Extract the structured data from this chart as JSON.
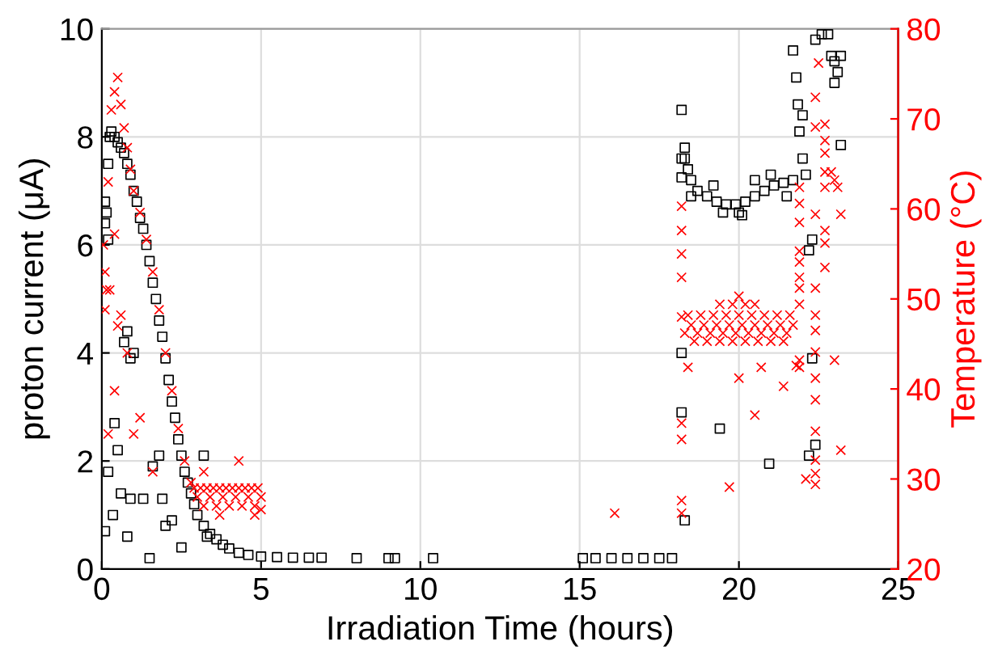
{
  "chart_data": {
    "type": "scatter",
    "xlabel": "Irradiation Time (hours)",
    "ylabel": "proton current (μA)",
    "y2label": "Temperature (°C)",
    "xlim": [
      0,
      25
    ],
    "xticks": [
      0,
      5,
      10,
      15,
      20,
      25
    ],
    "ylim": [
      0,
      10
    ],
    "yticks": [
      0,
      2,
      4,
      6,
      8,
      10
    ],
    "y2lim": [
      20,
      80
    ],
    "y2ticks": [
      20,
      30,
      40,
      50,
      60,
      70,
      80
    ],
    "grid": true,
    "series": [
      {
        "marker": "square",
        "color": "#000000",
        "x": [
          0.1,
          0.15,
          0.2,
          0.25,
          0.3,
          0.4,
          0.5,
          0.6,
          0.7,
          0.8,
          0.9,
          1.0,
          1.1,
          1.2,
          1.3,
          1.4,
          1.5,
          1.6,
          1.7,
          1.8,
          1.9,
          2.0,
          2.1,
          2.2,
          2.3,
          2.4,
          2.5,
          2.6,
          2.7,
          2.8,
          2.9,
          3.0,
          3.2,
          3.4,
          3.6,
          3.8,
          4.0,
          4.3,
          4.6,
          5.0,
          5.5,
          6.0,
          6.5,
          6.9,
          8.0,
          9.0,
          9.2,
          10.4,
          0.1,
          0.2,
          0.35,
          0.5,
          0.4,
          0.6,
          0.7,
          0.8,
          0.9,
          1.0,
          0.9,
          0.8,
          1.3,
          1.5,
          1.6,
          1.8,
          1.9,
          2.0,
          2.2,
          2.5,
          3.2,
          3.3,
          0.1,
          0.2,
          15.1,
          15.5,
          16.0,
          16.5,
          17.0,
          17.5,
          17.9,
          18.2,
          18.2,
          18.2,
          18.2,
          18.2,
          18.3,
          18.3,
          18.4,
          18.5,
          18.7,
          19.0,
          19.3,
          19.6,
          19.9,
          20.2,
          20.5,
          20.8,
          21.1,
          21.4,
          21.7,
          18.3,
          18.5,
          19.2,
          19.5,
          20.0,
          20.5,
          21.0,
          21.5,
          20.1,
          19.4,
          20.95,
          21.7,
          21.8,
          21.85,
          21.9,
          22.0,
          22.1,
          22.0,
          22.4,
          22.6,
          22.8,
          22.9,
          23.0,
          23.1,
          23.2,
          23.0,
          22.3,
          22.2,
          22.2,
          22.4,
          22.3,
          23.2
        ],
        "values": [
          6.4,
          6.6,
          7.5,
          8.0,
          8.1,
          8.0,
          7.9,
          7.8,
          7.7,
          7.5,
          7.3,
          7.0,
          6.8,
          6.5,
          6.3,
          6.0,
          5.7,
          5.3,
          5.0,
          4.6,
          4.3,
          3.9,
          3.5,
          3.1,
          2.8,
          2.4,
          2.1,
          1.8,
          1.6,
          1.4,
          1.2,
          1.0,
          0.8,
          0.65,
          0.55,
          0.45,
          0.38,
          0.3,
          0.26,
          0.23,
          0.22,
          0.21,
          0.21,
          0.21,
          0.2,
          0.2,
          0.2,
          0.2,
          0.7,
          1.8,
          1.0,
          2.2,
          2.7,
          1.4,
          4.2,
          4.4,
          3.9,
          4.0,
          1.3,
          0.6,
          1.3,
          0.2,
          1.9,
          2.1,
          1.3,
          0.8,
          0.9,
          0.4,
          2.1,
          0.6,
          6.8,
          6.1,
          0.2,
          0.2,
          0.2,
          0.2,
          0.2,
          0.2,
          0.2,
          2.9,
          4.0,
          8.5,
          7.6,
          7.25,
          0.9,
          7.6,
          7.4,
          7.2,
          7.0,
          6.9,
          6.8,
          6.75,
          6.75,
          6.8,
          6.9,
          7.0,
          7.1,
          7.15,
          7.2,
          7.8,
          6.9,
          7.1,
          6.6,
          6.6,
          7.2,
          7.3,
          6.9,
          6.55,
          2.6,
          1.95,
          9.6,
          9.1,
          8.6,
          8.1,
          7.6,
          7.3,
          8.4,
          9.8,
          9.9,
          9.9,
          9.5,
          9.4,
          9.2,
          9.5,
          9.0,
          6.1,
          5.9,
          2.1,
          2.3,
          3.9,
          7.85
        ]
      },
      {
        "marker": "cross",
        "color": "#ff0000",
        "axis": "y2",
        "x": [
          0.05,
          0.1,
          0.1,
          0.15,
          0.2,
          0.3,
          0.4,
          0.5,
          0.6,
          0.7,
          0.8,
          0.9,
          1.0,
          1.2,
          1.4,
          1.6,
          1.8,
          2.0,
          2.2,
          2.4,
          2.6,
          2.8,
          0.2,
          0.4,
          0.5,
          0.6,
          0.8,
          1.2,
          1.0,
          1.6,
          0.4,
          0.25,
          2.9,
          3.1,
          3.3,
          3.5,
          3.7,
          3.9,
          4.1,
          4.3,
          4.5,
          4.7,
          4.9,
          3.0,
          3.4,
          3.8,
          4.2,
          4.6,
          5.0,
          3.2,
          3.6,
          4.0,
          4.4,
          4.8,
          3.2,
          4.3,
          5.0,
          4.8,
          3.7,
          16.1,
          18.2,
          18.2,
          18.2,
          18.2,
          18.2,
          18.2,
          18.2,
          18.2,
          18.2,
          18.4,
          18.8,
          19.2,
          19.6,
          20.0,
          20.4,
          20.8,
          21.2,
          21.6,
          18.5,
          18.9,
          19.3,
          19.7,
          20.1,
          20.5,
          20.9,
          21.3,
          21.7,
          18.3,
          18.7,
          19.1,
          19.5,
          19.9,
          20.3,
          20.7,
          21.1,
          21.5,
          18.6,
          19.0,
          19.4,
          19.8,
          20.2,
          20.6,
          21.0,
          21.4,
          19.4,
          19.8,
          20.2,
          20.5,
          20.0,
          18.4,
          19.7,
          20.5,
          20.0,
          20.7,
          21.4,
          21.9,
          21.9,
          21.9,
          21.9,
          21.9,
          21.9,
          21.9,
          21.9,
          21.9,
          21.9,
          22.4,
          22.4,
          22.4,
          22.4,
          22.4,
          22.4,
          22.4,
          22.4,
          22.4,
          22.4,
          22.4,
          22.4,
          22.4,
          22.7,
          22.7,
          22.7,
          22.7,
          22.7,
          22.7,
          22.7,
          22.7,
          22.9,
          23.0,
          23.1,
          23.2,
          23.2,
          23.0,
          22.1,
          21.8,
          22.5
        ],
        "values": [
          56,
          53,
          48.8,
          51,
          63,
          71,
          73,
          74.6,
          71.6,
          69,
          66.8,
          64.4,
          62,
          59.6,
          56.6,
          53,
          48.8,
          44,
          39.8,
          35.6,
          32,
          29.6,
          35,
          39.8,
          47,
          48.2,
          44,
          36.8,
          35,
          30.8,
          57.2,
          51,
          29,
          29,
          29,
          29,
          29,
          29,
          29,
          29,
          29,
          29,
          29,
          28,
          28,
          28,
          28,
          28,
          28,
          27,
          27,
          27,
          27,
          27,
          30.8,
          32,
          26.6,
          26,
          26,
          26.2,
          26.2,
          27.6,
          36.2,
          34.4,
          48,
          52.4,
          55,
          57.6,
          60.3,
          48.2,
          48.2,
          48.2,
          48.2,
          48.2,
          48.2,
          48.2,
          48.2,
          48.2,
          47.1,
          47.1,
          47.1,
          47.1,
          47.1,
          47.1,
          47.1,
          47.1,
          47.1,
          46.2,
          46.2,
          46.2,
          46.2,
          46.2,
          46.2,
          46.2,
          46.2,
          46.2,
          45.3,
          45.3,
          45.3,
          45.3,
          45.3,
          45.3,
          45.3,
          45.3,
          49.4,
          49.4,
          49.4,
          49.4,
          50.3,
          42.4,
          29.1,
          37.1,
          41.2,
          42.4,
          40.3,
          62.4,
          60.6,
          58.5,
          55.3,
          54.1,
          52.4,
          51.2,
          49.4,
          43.2,
          42.4,
          72.4,
          69.1,
          59.4,
          51.2,
          48.2,
          46.5,
          44.1,
          41.2,
          38.8,
          35.3,
          32.1,
          30.6,
          29.4,
          69.4,
          67.6,
          66.2,
          64.1,
          62.4,
          57.6,
          56.2,
          53.5,
          64.1,
          63.2,
          62.4,
          59.4,
          33.2,
          43.2,
          30,
          42.6,
          76.2
        ]
      }
    ]
  }
}
